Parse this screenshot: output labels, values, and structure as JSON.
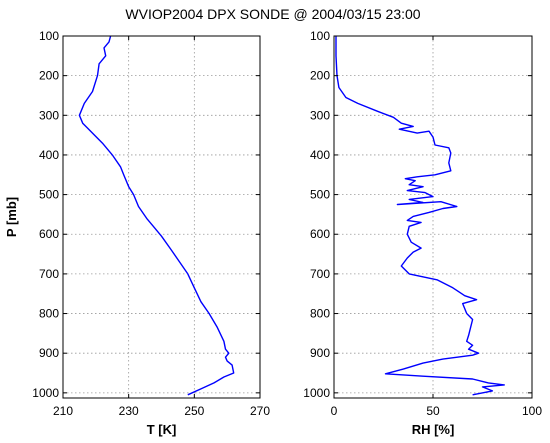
{
  "chart_data": {
    "title": "WVIOP2004 DPX SONDE @ 2004/03/15 23:00",
    "ylabel": "P [mb]",
    "ylim": [
      100,
      1013
    ],
    "y_reversed": true,
    "yticks": [
      100,
      200,
      300,
      400,
      500,
      600,
      700,
      800,
      900,
      1000
    ],
    "grid": true,
    "panels": [
      {
        "type": "line",
        "xlabel": "T [K]",
        "xlim": [
          210,
          270
        ],
        "xticks": [
          210,
          230,
          250,
          270
        ],
        "color": "#0000ff",
        "points": [
          [
            224.5,
            100
          ],
          [
            224.0,
            115
          ],
          [
            222.5,
            130
          ],
          [
            223.0,
            150
          ],
          [
            221.0,
            170
          ],
          [
            220.5,
            200
          ],
          [
            219.0,
            240
          ],
          [
            216.5,
            270
          ],
          [
            215.0,
            300
          ],
          [
            216.0,
            320
          ],
          [
            219.0,
            345
          ],
          [
            222.0,
            370
          ],
          [
            225.0,
            400
          ],
          [
            227.5,
            430
          ],
          [
            228.5,
            450
          ],
          [
            230.0,
            480
          ],
          [
            231.5,
            500
          ],
          [
            233.0,
            530
          ],
          [
            235.5,
            560
          ],
          [
            237.5,
            580
          ],
          [
            240.0,
            605
          ],
          [
            243.0,
            640
          ],
          [
            245.5,
            670
          ],
          [
            248.0,
            700
          ],
          [
            250.0,
            735
          ],
          [
            252.0,
            770
          ],
          [
            254.5,
            800
          ],
          [
            257.0,
            835
          ],
          [
            259.0,
            870
          ],
          [
            259.5,
            890
          ],
          [
            260.5,
            900
          ],
          [
            259.5,
            910
          ],
          [
            260.0,
            920
          ],
          [
            261.5,
            930
          ],
          [
            262.0,
            950
          ],
          [
            259.0,
            960
          ],
          [
            256.0,
            975
          ],
          [
            252.0,
            990
          ],
          [
            248.0,
            1005
          ]
        ]
      },
      {
        "type": "line",
        "xlabel": "RH [%]",
        "xlim": [
          0,
          100
        ],
        "xticks": [
          0,
          50,
          100
        ],
        "color": "#0000ff",
        "points": [
          [
            1,
            100
          ],
          [
            1,
            150
          ],
          [
            1.5,
            200
          ],
          [
            2.5,
            230
          ],
          [
            6,
            255
          ],
          [
            12,
            270
          ],
          [
            22,
            290
          ],
          [
            30,
            305
          ],
          [
            34,
            320
          ],
          [
            40,
            328
          ],
          [
            33,
            335
          ],
          [
            42,
            345
          ],
          [
            48,
            340
          ],
          [
            50,
            355
          ],
          [
            51,
            375
          ],
          [
            58,
            382
          ],
          [
            59,
            395
          ],
          [
            58,
            420
          ],
          [
            59,
            440
          ],
          [
            51,
            450
          ],
          [
            42,
            455
          ],
          [
            36,
            460
          ],
          [
            41,
            465
          ],
          [
            38,
            475
          ],
          [
            45,
            480
          ],
          [
            37,
            490
          ],
          [
            46,
            495
          ],
          [
            50,
            505
          ],
          [
            38,
            512
          ],
          [
            45,
            520
          ],
          [
            32,
            525
          ],
          [
            54,
            518
          ],
          [
            62,
            530
          ],
          [
            55,
            535
          ],
          [
            48,
            545
          ],
          [
            40,
            555
          ],
          [
            37,
            565
          ],
          [
            44,
            570
          ],
          [
            38,
            580
          ],
          [
            37,
            600
          ],
          [
            39,
            620
          ],
          [
            44,
            635
          ],
          [
            40,
            645
          ],
          [
            37,
            660
          ],
          [
            34,
            680
          ],
          [
            38,
            700
          ],
          [
            52,
            715
          ],
          [
            56,
            725
          ],
          [
            60,
            735
          ],
          [
            63,
            745
          ],
          [
            66,
            755
          ],
          [
            72,
            765
          ],
          [
            65,
            775
          ],
          [
            67,
            800
          ],
          [
            70,
            815
          ],
          [
            69,
            835
          ],
          [
            68,
            855
          ],
          [
            67,
            870
          ],
          [
            70,
            880
          ],
          [
            68,
            890
          ],
          [
            73,
            900
          ],
          [
            70,
            905
          ],
          [
            55,
            915
          ],
          [
            45,
            925
          ],
          [
            35,
            940
          ],
          [
            26,
            952
          ],
          [
            45,
            958
          ],
          [
            70,
            965
          ],
          [
            78,
            975
          ],
          [
            86,
            980
          ],
          [
            75,
            985
          ],
          [
            80,
            995
          ],
          [
            70,
            1005
          ]
        ]
      }
    ]
  }
}
